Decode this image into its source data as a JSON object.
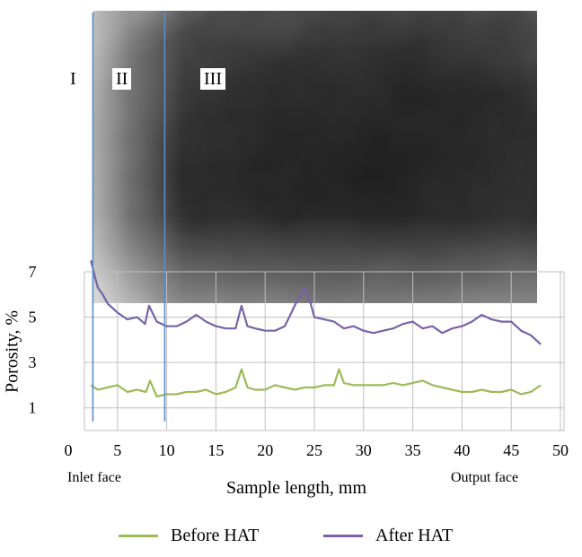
{
  "zones": [
    "I",
    "II",
    "III"
  ],
  "face_labels": {
    "inlet": "Inlet face",
    "output": "Output face"
  },
  "colors": {
    "before": "#9bbb59",
    "after": "#7763a7",
    "boundary": "#5b8ec4",
    "grid": "#bfbfbf"
  },
  "chart_data": {
    "type": "line",
    "title": "",
    "xlabel": "Sample length, mm",
    "ylabel": "Porosity, %",
    "xlim": [
      0,
      50
    ],
    "ylim": [
      0,
      7
    ],
    "x_ticks": [
      0,
      5,
      10,
      15,
      20,
      25,
      30,
      35,
      40,
      45,
      50
    ],
    "y_ticks": [
      1,
      3,
      5,
      7
    ],
    "grid": true,
    "legend_position": "bottom",
    "zone_boundaries_mm": [
      2.5,
      9.8
    ],
    "series": [
      {
        "name": "Before HAT",
        "x": [
          2.3,
          3,
          4,
          5,
          6,
          7,
          7.9,
          8.3,
          9,
          10,
          11,
          12,
          13,
          14,
          15,
          16,
          17,
          17.6,
          18.2,
          19,
          20,
          21,
          22,
          23,
          24,
          25,
          26,
          27,
          27.5,
          28,
          29,
          30,
          31,
          32,
          33,
          34,
          35,
          36,
          37,
          38,
          39,
          40,
          41,
          42,
          43,
          44,
          45,
          46,
          47,
          48
        ],
        "values": [
          2.0,
          1.8,
          1.9,
          2.0,
          1.7,
          1.8,
          1.7,
          2.2,
          1.5,
          1.6,
          1.6,
          1.7,
          1.7,
          1.8,
          1.6,
          1.7,
          1.9,
          2.7,
          1.9,
          1.8,
          1.8,
          2.0,
          1.9,
          1.8,
          1.9,
          1.9,
          2.0,
          2.0,
          2.7,
          2.1,
          2.0,
          2.0,
          2.0,
          2.0,
          2.1,
          2.0,
          2.1,
          2.2,
          2.0,
          1.9,
          1.8,
          1.7,
          1.7,
          1.8,
          1.7,
          1.7,
          1.8,
          1.6,
          1.7,
          2.0
        ]
      },
      {
        "name": "After HAT",
        "x": [
          2.3,
          2.7,
          3,
          3.5,
          4,
          5,
          6,
          7,
          7.8,
          8.2,
          9,
          10,
          11,
          12,
          13,
          14,
          15,
          16,
          17,
          17.6,
          18.2,
          19,
          20,
          21,
          22,
          23,
          24,
          24.5,
          25,
          26,
          27,
          28,
          29,
          30,
          31,
          32,
          33,
          34,
          35,
          36,
          37,
          38,
          39,
          40,
          41,
          42,
          43,
          44,
          45,
          46,
          47,
          48
        ],
        "values": [
          7.5,
          6.8,
          6.3,
          6.0,
          5.6,
          5.2,
          4.9,
          5.0,
          4.7,
          5.5,
          4.8,
          4.6,
          4.6,
          4.8,
          5.1,
          4.8,
          4.6,
          4.5,
          4.5,
          5.5,
          4.6,
          4.5,
          4.4,
          4.4,
          4.6,
          5.5,
          6.3,
          5.8,
          5.0,
          4.9,
          4.8,
          4.5,
          4.6,
          4.4,
          4.3,
          4.4,
          4.5,
          4.7,
          4.8,
          4.5,
          4.6,
          4.3,
          4.5,
          4.6,
          4.8,
          5.1,
          4.9,
          4.8,
          4.8,
          4.4,
          4.2,
          3.8
        ]
      }
    ]
  }
}
